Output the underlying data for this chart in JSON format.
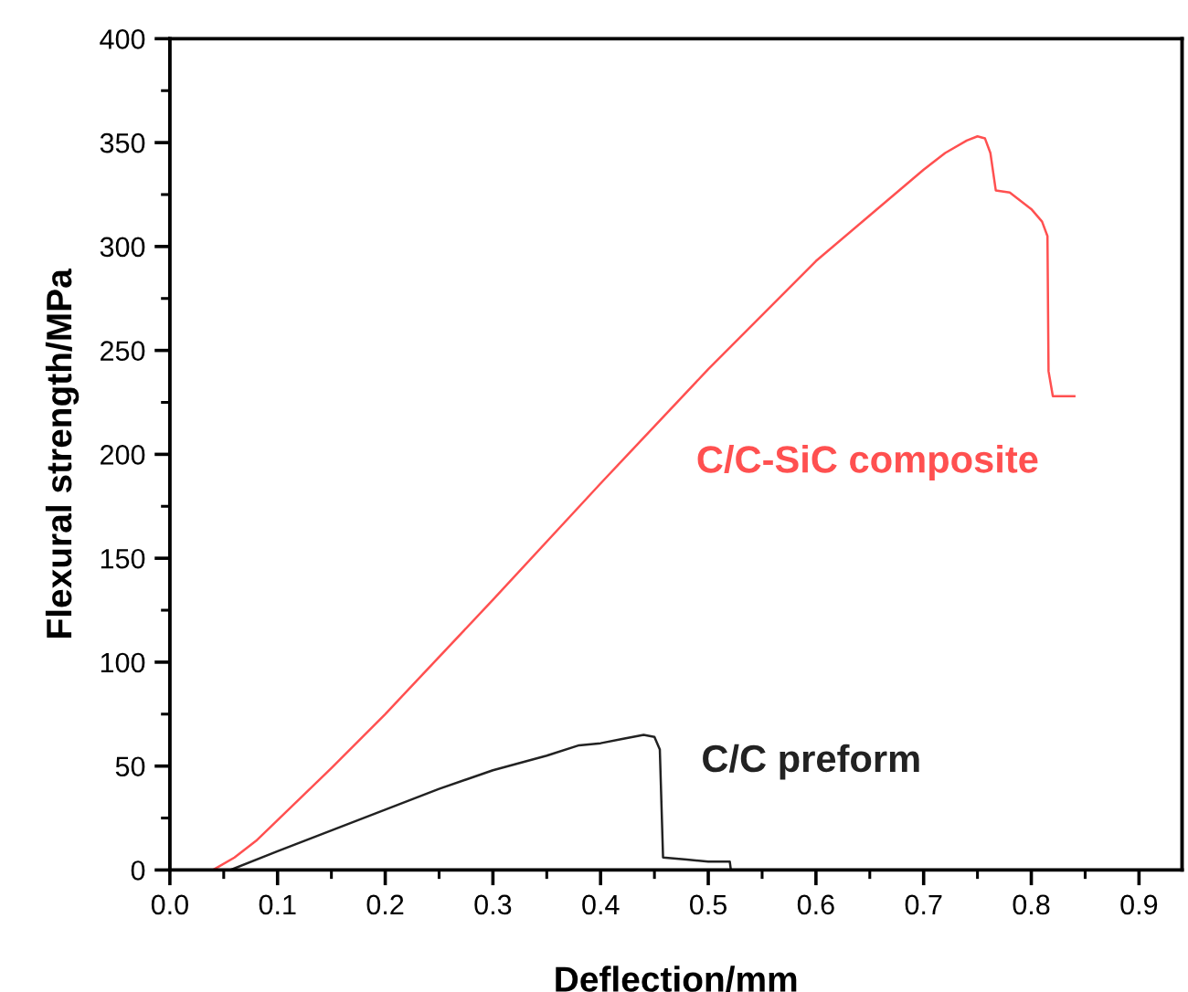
{
  "chart_data": {
    "type": "line",
    "xlabel": "Deflection/mm",
    "ylabel": "Flexural strength/MPa",
    "xlim": [
      0,
      0.94
    ],
    "xticks": [
      {
        "value": 0,
        "label": "0.0"
      },
      0.1,
      0.2,
      0.3,
      0.4,
      0.5,
      0.6,
      0.7,
      0.8,
      0.9
    ],
    "ylim": [
      0,
      400
    ],
    "yticks": [
      0,
      50,
      100,
      150,
      200,
      250,
      300,
      350,
      400
    ],
    "grid": false,
    "legend": false,
    "marker": "none",
    "line_style": "solid",
    "series": [
      {
        "name": "C/C-SiC composite",
        "color": "#ff5050",
        "x": [
          0,
          0.04,
          0.06,
          0.08,
          0.1,
          0.15,
          0.2,
          0.3,
          0.4,
          0.5,
          0.6,
          0.65,
          0.7,
          0.72,
          0.74,
          0.75,
          0.757,
          0.762,
          0.767,
          0.78,
          0.8,
          0.81,
          0.815,
          0.816,
          0.82,
          0.84
        ],
        "values": [
          0,
          0,
          6,
          14,
          24,
          49,
          75,
          130,
          186,
          241,
          293,
          315,
          337,
          345,
          351,
          353,
          352,
          345,
          327,
          326,
          318,
          312,
          305,
          240,
          228,
          228
        ]
      },
      {
        "name": "C/C preform",
        "color": "#222222",
        "x": [
          0.056,
          0.1,
          0.15,
          0.2,
          0.25,
          0.3,
          0.35,
          0.38,
          0.4,
          0.42,
          0.44,
          0.45,
          0.455,
          0.458,
          0.48,
          0.5,
          0.52,
          0.521
        ],
        "values": [
          0,
          9,
          19,
          29,
          39,
          48,
          55,
          60,
          61,
          63,
          65,
          64,
          58,
          6,
          5,
          4,
          4,
          0
        ]
      }
    ]
  }
}
